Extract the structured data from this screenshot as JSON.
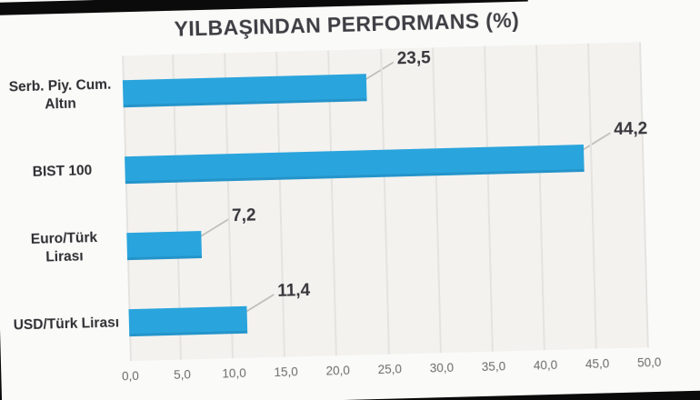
{
  "page": {
    "background_color": "#0a0a0a",
    "photo_background": "#fafaf8",
    "top_strip_color": "#0b0b0b"
  },
  "chart_data": {
    "type": "bar",
    "orientation": "horizontal",
    "title": "YILBAŞINDAN PERFORMANS (%)",
    "categories": [
      "Serb. Piy. Cum. Altın",
      "BIST 100",
      "Euro/Türk Lirası",
      "USD/Türk Lirası"
    ],
    "values": [
      23.5,
      44.2,
      7.2,
      11.4
    ],
    "value_labels": [
      "23,5",
      "44,2",
      "7,2",
      "11,4"
    ],
    "xlabel": "",
    "ylabel": "",
    "xlim": [
      0,
      50
    ],
    "x_tick_step": 5,
    "x_tick_labels": [
      "0,0",
      "5,0",
      "10,0",
      "15,0",
      "20,0",
      "25,0",
      "30,0",
      "35,0",
      "40,0",
      "45,0",
      "50,0"
    ],
    "grid": true,
    "legend": false,
    "bar_color": "#2aa4dc",
    "plot_background": "#f3f2ef",
    "gridline_color": "#e4e3e0",
    "title_color": "#3e3e44",
    "category_label_color": "#2e2e33",
    "value_label_color": "#36363b",
    "tick_label_color": "#6a6a67",
    "leader_line_color": "#bcbcb8"
  }
}
